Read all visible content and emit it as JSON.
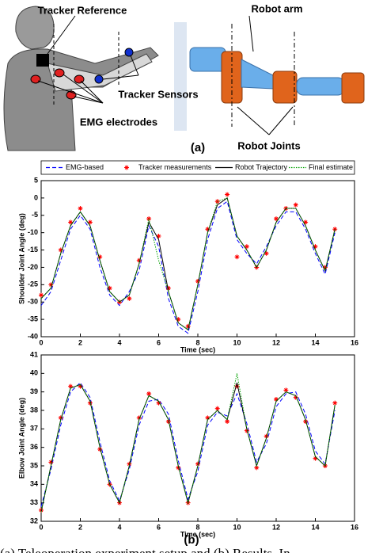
{
  "figure": {
    "labels": {
      "tracker_reference": "Tracker Reference",
      "robot_arm": "Robot arm",
      "tracker_sensors": "Tracker Sensors",
      "emg_electrodes": "EMG electrodes",
      "robot_joints": "Robot Joints"
    },
    "panel_a": "(a)",
    "panel_b": "(b)",
    "caption": "(a) Teleoperation experiment setup and (b) Results. In"
  },
  "chart_data": [
    {
      "type": "line",
      "xlabel": "Time (sec)",
      "ylabel": "Shoulder Joint Angle (deg)",
      "x": [
        0,
        0.5,
        1,
        1.5,
        2,
        2.5,
        3,
        3.5,
        4,
        4.5,
        5,
        5.5,
        6,
        6.5,
        7,
        7.5,
        8,
        8.5,
        9,
        9.5,
        10,
        10.5,
        11,
        11.5,
        12,
        12.5,
        13,
        13.5,
        14,
        14.5,
        15
      ],
      "xlim": [
        0,
        16
      ],
      "xticks": [
        0,
        2,
        4,
        6,
        8,
        10,
        12,
        14,
        16
      ],
      "ylim": [
        -40,
        5
      ],
      "yticks": [
        -40,
        -35,
        -30,
        -25,
        -20,
        -15,
        -10,
        -5,
        0,
        5
      ],
      "series": [
        {
          "name": "EMG-based",
          "color": "#0000ff",
          "style": "dashed",
          "values": [
            -31,
            -27,
            -18,
            -9,
            -5,
            -9,
            -20,
            -28,
            -31,
            -27,
            -21,
            -8,
            -14,
            -29,
            -37,
            -39,
            -27,
            -12,
            -3,
            -1,
            -12,
            -16,
            -19,
            -14,
            -8,
            -4,
            -4,
            -9,
            -16,
            -22,
            -10
          ]
        },
        {
          "name": "Tracker measurements",
          "color": "#ff0000",
          "style": "markers",
          "values": [
            -28,
            -25,
            -15,
            -7,
            -3,
            -7,
            -17,
            -26,
            -30,
            -29,
            -18,
            -6,
            -11,
            -26,
            -35,
            -37,
            -24,
            -9,
            -1,
            1,
            -17,
            -14,
            -20,
            -16,
            -6,
            -3,
            -2,
            -7,
            -14,
            -20,
            -9
          ]
        },
        {
          "name": "Robot Trajectory",
          "color": "#000000",
          "style": "solid",
          "values": [
            -29,
            -26,
            -16,
            -8,
            -4,
            -8,
            -18,
            -27,
            -30,
            -28,
            -19,
            -7,
            -12,
            -27,
            -36,
            -38,
            -25,
            -10,
            -2,
            0,
            -11,
            -15,
            -20,
            -15,
            -7,
            -3,
            -3,
            -8,
            -15,
            -21,
            -9
          ]
        },
        {
          "name": "Final estimate",
          "color": "#00a000",
          "style": "dotted",
          "values": [
            -29,
            -26,
            -16,
            -8,
            -4,
            -8,
            -18,
            -27,
            -30,
            -28,
            -19,
            -6,
            -18,
            -27,
            -36,
            -38,
            -25,
            -10,
            -1,
            0,
            -11,
            -15,
            -20,
            -15,
            -7,
            -3,
            -3,
            -8,
            -15,
            -21,
            -9
          ]
        }
      ]
    },
    {
      "type": "line",
      "xlabel": "Time (sec)",
      "ylabel": "Elbow Joint Angle (deg)",
      "x": [
        0,
        0.5,
        1,
        1.5,
        2,
        2.5,
        3,
        3.5,
        4,
        4.5,
        5,
        5.5,
        6,
        6.5,
        7,
        7.5,
        8,
        8.5,
        9,
        9.5,
        10,
        10.5,
        11,
        11.5,
        12,
        12.5,
        13,
        13.5,
        14,
        14.5,
        15
      ],
      "xlim": [
        0,
        16
      ],
      "xticks": [
        0,
        2,
        4,
        6,
        8,
        10,
        12,
        14,
        16
      ],
      "ylim": [
        32,
        41
      ],
      "yticks": [
        32,
        33,
        34,
        35,
        36,
        37,
        38,
        39,
        40,
        41
      ],
      "series": [
        {
          "color": "#0000ff",
          "style": "dashed",
          "values": [
            32.8,
            34.8,
            37.2,
            39,
            39.5,
            38.7,
            36.3,
            34.2,
            33.1,
            34.8,
            37.2,
            38.5,
            38.6,
            37.8,
            35.3,
            33.2,
            34.7,
            37.2,
            37.9,
            37.7,
            38.9,
            37.3,
            35.2,
            36.2,
            38.2,
            38.9,
            39,
            37.8,
            35.8,
            35.1,
            38
          ]
        },
        {
          "color": "#ff0000",
          "style": "markers",
          "values": [
            32.6,
            35.2,
            37.6,
            39.3,
            39.3,
            38.4,
            35.9,
            34,
            33,
            35.1,
            37.6,
            38.9,
            38.4,
            37.4,
            34.9,
            33,
            35.1,
            37.6,
            38.1,
            37.4,
            39.3,
            36.9,
            34.9,
            36.6,
            38.6,
            39.1,
            38.7,
            37.4,
            35.4,
            35,
            38.4
          ]
        },
        {
          "color": "#000000",
          "style": "solid",
          "values": [
            32.5,
            35,
            37.5,
            39.2,
            39.4,
            38.5,
            36,
            34,
            33,
            35,
            37.5,
            38.8,
            38.5,
            37.5,
            35,
            33,
            35,
            37.5,
            38,
            37.5,
            39.5,
            37,
            35,
            36.5,
            38.5,
            39,
            38.8,
            37.5,
            35.5,
            35,
            38.3
          ]
        },
        {
          "color": "#00a000",
          "style": "dotted",
          "values": [
            32.5,
            35,
            37.5,
            39.2,
            39.4,
            38.5,
            36,
            34,
            33,
            35,
            37.5,
            38.8,
            38.5,
            37.5,
            35,
            33,
            35,
            37.5,
            38,
            37.5,
            40,
            37,
            35,
            36.5,
            38.5,
            39,
            38.8,
            37.5,
            35.5,
            35,
            38.3
          ]
        }
      ]
    }
  ]
}
